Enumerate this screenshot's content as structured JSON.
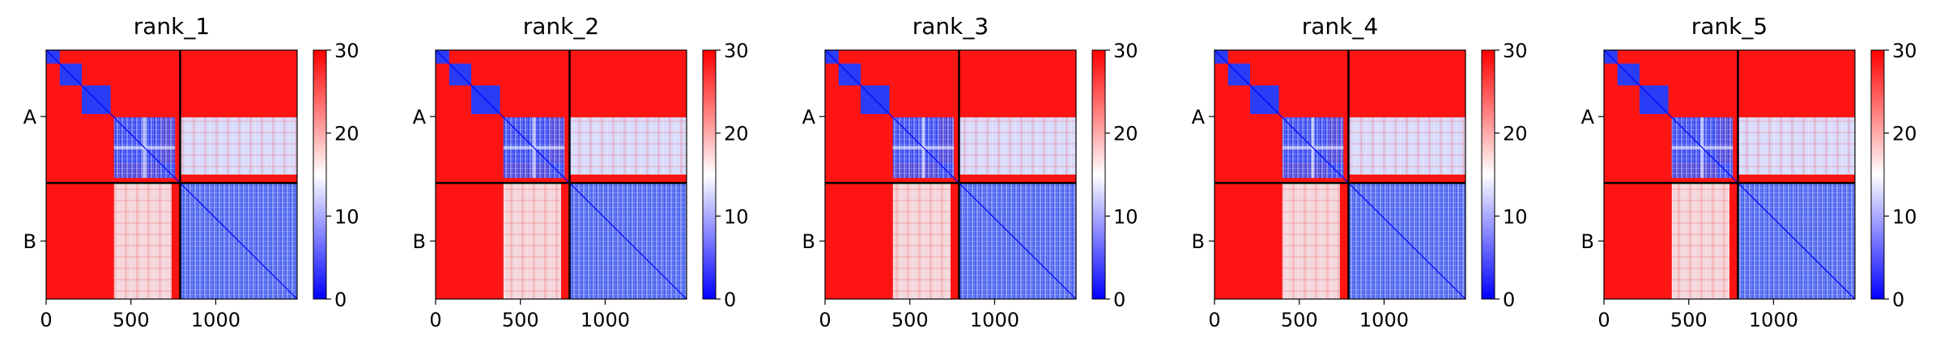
{
  "chart_data": {
    "type": "heatmap",
    "colormap": {
      "name": "bwr",
      "low_color": "#0000ff",
      "mid_color": "#ffffff",
      "high_color": "#ff0000",
      "range": [
        0,
        30
      ],
      "ticks": [
        0,
        10,
        20,
        30
      ]
    },
    "chain_boundary": 790,
    "extent": [
      0,
      1480
    ],
    "x_ticks": [
      0,
      500,
      1000
    ],
    "y_tick_labels": [
      "A",
      "B"
    ],
    "panels": [
      {
        "title": "rank_1"
      },
      {
        "title": "rank_2"
      },
      {
        "title": "rank_3"
      },
      {
        "title": "rank_4"
      },
      {
        "title": "rank_5"
      }
    ]
  }
}
